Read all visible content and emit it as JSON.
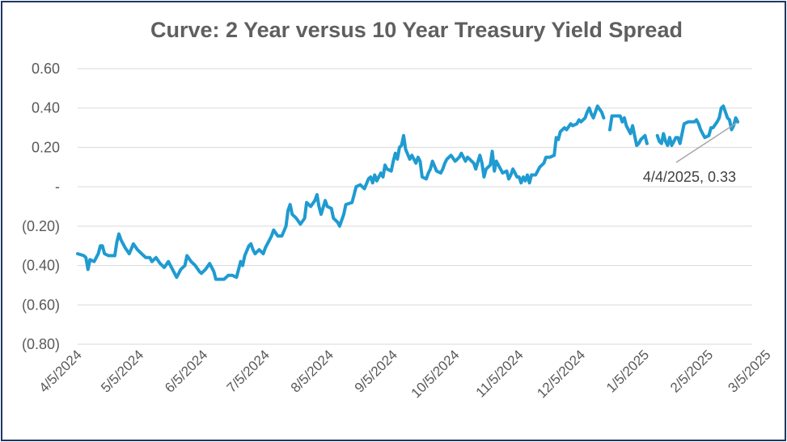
{
  "chart_data": {
    "type": "line",
    "title": "Curve: 2 Year versus 10 Year Treasury Yield Spread",
    "xlabel": "",
    "ylabel": "",
    "ylim": [
      -0.8,
      0.6
    ],
    "y_ticks": [
      0.6,
      0.4,
      0.2,
      0,
      -0.2,
      -0.4,
      -0.6,
      -0.8
    ],
    "y_tick_labels": [
      "0.60",
      "0.40",
      "0.20",
      "-",
      "(0.20)",
      "(0.40)",
      "(0.60)",
      "(0.80)"
    ],
    "x_ticks": [
      0,
      30,
      61,
      91,
      122,
      153,
      183,
      214,
      244,
      275,
      306,
      334
    ],
    "x_tick_labels": [
      "4/5/2024",
      "5/5/2024",
      "6/5/2024",
      "7/5/2024",
      "8/5/2024",
      "9/5/2024",
      "10/5/2024",
      "11/5/2024",
      "12/5/2024",
      "1/5/2025",
      "2/5/2025",
      "3/5/2025"
    ],
    "x_unit": "days since 4/5/2024",
    "series": [
      {
        "name": "2 Year versus 10 Year Treasury Yield Spread",
        "color": "#1f9bd1",
        "segments": [
          [
            [
              0,
              -0.34
            ],
            [
              3,
              -0.35
            ],
            [
              4,
              -0.36
            ],
            [
              5,
              -0.42
            ],
            [
              6,
              -0.37
            ],
            [
              8,
              -0.38
            ],
            [
              10,
              -0.34
            ],
            [
              11,
              -0.3
            ],
            [
              12,
              -0.3
            ],
            [
              13,
              -0.34
            ],
            [
              15,
              -0.35
            ],
            [
              18,
              -0.35
            ],
            [
              19,
              -0.28
            ],
            [
              20,
              -0.24
            ],
            [
              21,
              -0.27
            ],
            [
              23,
              -0.31
            ],
            [
              25,
              -0.34
            ],
            [
              27,
              -0.29
            ],
            [
              29,
              -0.32
            ],
            [
              31,
              -0.34
            ],
            [
              33,
              -0.36
            ],
            [
              35,
              -0.36
            ],
            [
              36,
              -0.38
            ],
            [
              38,
              -0.36
            ],
            [
              40,
              -0.39
            ],
            [
              42,
              -0.41
            ],
            [
              44,
              -0.38
            ],
            [
              46,
              -0.42
            ],
            [
              48,
              -0.46
            ],
            [
              50,
              -0.42
            ],
            [
              52,
              -0.4
            ],
            [
              53,
              -0.35
            ],
            [
              55,
              -0.38
            ],
            [
              57,
              -0.4
            ],
            [
              59,
              -0.43
            ],
            [
              60,
              -0.44
            ],
            [
              62,
              -0.42
            ],
            [
              64,
              -0.39
            ],
            [
              66,
              -0.43
            ],
            [
              67,
              -0.47
            ],
            [
              69,
              -0.47
            ],
            [
              71,
              -0.47
            ],
            [
              73,
              -0.45
            ],
            [
              75,
              -0.45
            ],
            [
              77,
              -0.46
            ],
            [
              79,
              -0.38
            ],
            [
              80,
              -0.4
            ],
            [
              81,
              -0.35
            ],
            [
              83,
              -0.3
            ],
            [
              84,
              -0.29
            ],
            [
              85,
              -0.32
            ],
            [
              86,
              -0.34
            ],
            [
              88,
              -0.32
            ],
            [
              89,
              -0.33
            ],
            [
              90,
              -0.34
            ],
            [
              91,
              -0.31
            ],
            [
              93,
              -0.27
            ],
            [
              94,
              -0.25
            ],
            [
              95,
              -0.22
            ],
            [
              97,
              -0.25
            ],
            [
              99,
              -0.25
            ],
            [
              101,
              -0.2
            ],
            [
              102,
              -0.12
            ],
            [
              103,
              -0.09
            ],
            [
              104,
              -0.14
            ],
            [
              106,
              -0.16
            ],
            [
              108,
              -0.19
            ],
            [
              110,
              -0.16
            ],
            [
              111,
              -0.08
            ],
            [
              113,
              -0.1
            ],
            [
              115,
              -0.07
            ],
            [
              116,
              -0.04
            ],
            [
              117,
              -0.1
            ],
            [
              118,
              -0.14
            ],
            [
              120,
              -0.07
            ],
            [
              121,
              -0.1
            ],
            [
              123,
              -0.11
            ],
            [
              124,
              -0.16
            ],
            [
              126,
              -0.18
            ],
            [
              127,
              -0.2
            ],
            [
              129,
              -0.14
            ],
            [
              130,
              -0.09
            ],
            [
              133,
              -0.08
            ],
            [
              134,
              -0.04
            ],
            [
              135,
              0.0
            ],
            [
              137,
              0.01
            ],
            [
              139,
              -0.01
            ],
            [
              141,
              0.04
            ],
            [
              142,
              0.05
            ],
            [
              143,
              0.02
            ],
            [
              144,
              0.06
            ],
            [
              145,
              0.03
            ],
            [
              147,
              0.07
            ],
            [
              148,
              0.05
            ],
            [
              149,
              0.11
            ],
            [
              150,
              0.09
            ],
            [
              152,
              0.08
            ],
            [
              153,
              0.13
            ],
            [
              154,
              0.17
            ],
            [
              155,
              0.14
            ],
            [
              156,
              0.2
            ],
            [
              157,
              0.21
            ],
            [
              158,
              0.26
            ],
            [
              159,
              0.19
            ],
            [
              161,
              0.14
            ],
            [
              162,
              0.16
            ],
            [
              164,
              0.12
            ],
            [
              165,
              0.15
            ],
            [
              166,
              0.13
            ],
            [
              167,
              0.05
            ],
            [
              169,
              0.04
            ],
            [
              170,
              0.07
            ],
            [
              171,
              0.09
            ],
            [
              172,
              0.13
            ],
            [
              174,
              0.08
            ],
            [
              176,
              0.07
            ],
            [
              177,
              0.09
            ],
            [
              178,
              0.12
            ],
            [
              179,
              0.14
            ],
            [
              181,
              0.16
            ],
            [
              183,
              0.13
            ],
            [
              185,
              0.15
            ],
            [
              186,
              0.17
            ],
            [
              188,
              0.13
            ],
            [
              189,
              0.15
            ],
            [
              190,
              0.14
            ],
            [
              192,
              0.12
            ],
            [
              193,
              0.09
            ],
            [
              195,
              0.16
            ],
            [
              196,
              0.12
            ],
            [
              197,
              0.05
            ],
            [
              198,
              0.09
            ],
            [
              200,
              0.11
            ],
            [
              201,
              0.18
            ],
            [
              202,
              0.08
            ],
            [
              203,
              0.13
            ],
            [
              205,
              0.09
            ],
            [
              206,
              0.07
            ],
            [
              208,
              0.08
            ],
            [
              209,
              0.04
            ],
            [
              210,
              0.06
            ],
            [
              211,
              0.09
            ],
            [
              212,
              0.07
            ],
            [
              213,
              0.05
            ],
            [
              214,
              0.05
            ],
            [
              215,
              0.02
            ],
            [
              216,
              0.05
            ],
            [
              217,
              0.03
            ],
            [
              218,
              0.06
            ],
            [
              219,
              0.02
            ],
            [
              220,
              0.06
            ],
            [
              222,
              0.06
            ],
            [
              224,
              0.1
            ],
            [
              226,
              0.12
            ],
            [
              227,
              0.15
            ],
            [
              229,
              0.15
            ],
            [
              231,
              0.16
            ],
            [
              232,
              0.25
            ],
            [
              233,
              0.24
            ],
            [
              234,
              0.28
            ],
            [
              236,
              0.3
            ],
            [
              237,
              0.29
            ],
            [
              239,
              0.32
            ],
            [
              240,
              0.31
            ],
            [
              242,
              0.32
            ],
            [
              243,
              0.34
            ],
            [
              244,
              0.33
            ],
            [
              246,
              0.35
            ],
            [
              247,
              0.38
            ],
            [
              248,
              0.4
            ],
            [
              249,
              0.37
            ],
            [
              250,
              0.35
            ],
            [
              251,
              0.38
            ],
            [
              252,
              0.41
            ],
            [
              254,
              0.38
            ],
            [
              255,
              0.35
            ]
          ],
          [
            [
              258,
              0.29
            ],
            [
              259,
              0.36
            ],
            [
              263,
              0.36
            ],
            [
              264,
              0.33
            ],
            [
              265,
              0.35
            ],
            [
              266,
              0.31
            ],
            [
              268,
              0.27
            ],
            [
              269,
              0.31
            ],
            [
              270,
              0.26
            ],
            [
              271,
              0.21
            ],
            [
              272,
              0.22
            ],
            [
              273,
              0.24
            ],
            [
              275,
              0.26
            ],
            [
              276,
              0.22
            ]
          ],
          [
            [
              281,
              0.26
            ],
            [
              282,
              0.23
            ],
            [
              283,
              0.22
            ],
            [
              284,
              0.27
            ],
            [
              285,
              0.23
            ],
            [
              286,
              0.21
            ],
            [
              287,
              0.25
            ],
            [
              288,
              0.21
            ],
            [
              290,
              0.25
            ],
            [
              291,
              0.25
            ],
            [
              292,
              0.22
            ],
            [
              294,
              0.32
            ],
            [
              296,
              0.33
            ],
            [
              297,
              0.33
            ],
            [
              299,
              0.33
            ],
            [
              300,
              0.34
            ],
            [
              301,
              0.32
            ],
            [
              302,
              0.29
            ],
            [
              303,
              0.27
            ],
            [
              304,
              0.25
            ],
            [
              306,
              0.26
            ],
            [
              307,
              0.3
            ],
            [
              308,
              0.3
            ],
            [
              310,
              0.33
            ],
            [
              311,
              0.35
            ],
            [
              312,
              0.4
            ],
            [
              313,
              0.41
            ],
            [
              315,
              0.35
            ],
            [
              316,
              0.34
            ],
            [
              317,
              0.29
            ],
            [
              318,
              0.31
            ],
            [
              319,
              0.35
            ],
            [
              320,
              0.33
            ]
          ]
        ]
      }
    ],
    "annotation": {
      "x": 320,
      "y": 0.33,
      "text": "4/4/2025,  0.33"
    }
  }
}
